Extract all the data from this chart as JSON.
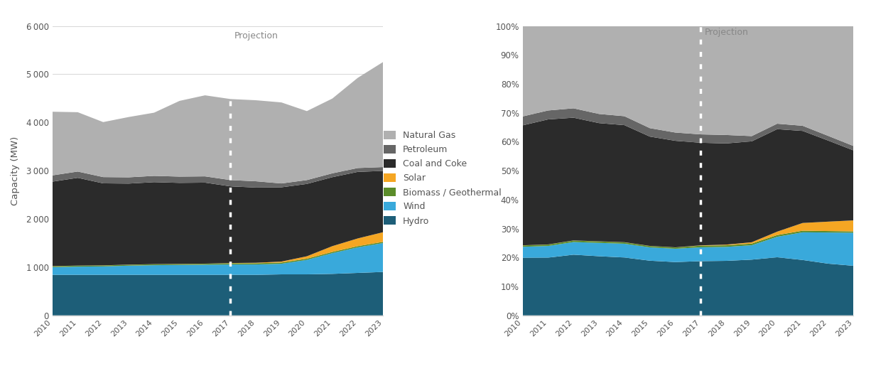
{
  "years": [
    2010,
    2011,
    2012,
    2013,
    2014,
    2015,
    2016,
    2017,
    2018,
    2019,
    2020,
    2021,
    2022,
    2023
  ],
  "hydro": [
    840,
    840,
    840,
    840,
    840,
    840,
    840,
    840,
    840,
    850,
    850,
    860,
    880,
    900
  ],
  "wind": [
    160,
    170,
    175,
    190,
    200,
    205,
    210,
    215,
    215,
    220,
    300,
    430,
    530,
    600
  ],
  "biomass": [
    20,
    20,
    20,
    20,
    20,
    20,
    20,
    25,
    25,
    25,
    25,
    25,
    25,
    25
  ],
  "solar": [
    2,
    2,
    2,
    2,
    2,
    2,
    2,
    5,
    10,
    20,
    50,
    120,
    160,
    200
  ],
  "coal": [
    1750,
    1820,
    1700,
    1680,
    1700,
    1680,
    1680,
    1590,
    1560,
    1540,
    1500,
    1430,
    1380,
    1270
  ],
  "petroleum": [
    130,
    130,
    130,
    130,
    130,
    130,
    130,
    130,
    130,
    80,
    80,
    80,
    80,
    80
  ],
  "natgas": [
    1320,
    1230,
    1140,
    1250,
    1310,
    1570,
    1680,
    1680,
    1680,
    1680,
    1430,
    1550,
    1870,
    2180
  ],
  "projection_year": 2017,
  "color_hydro": "#1d5e78",
  "color_wind": "#39a9db",
  "color_biomass": "#5b8c2a",
  "color_solar": "#f5a623",
  "color_coal": "#2b2b2b",
  "color_petroleum": "#666666",
  "color_natgas": "#b0b0b0",
  "color_background": "#ffffff",
  "ylabel1": "Capacity (MW)",
  "projection_label": "Projection",
  "legend_labels": [
    "Natural Gas",
    "Petroleum",
    "Coal and Coke",
    "Solar",
    "Biomass / Geothermal",
    "Wind",
    "Hydro"
  ],
  "yticks1": [
    0,
    1000,
    2000,
    3000,
    4000,
    5000,
    6000
  ],
  "yticks2": [
    0,
    10,
    20,
    30,
    40,
    50,
    60,
    70,
    80,
    90,
    100
  ]
}
